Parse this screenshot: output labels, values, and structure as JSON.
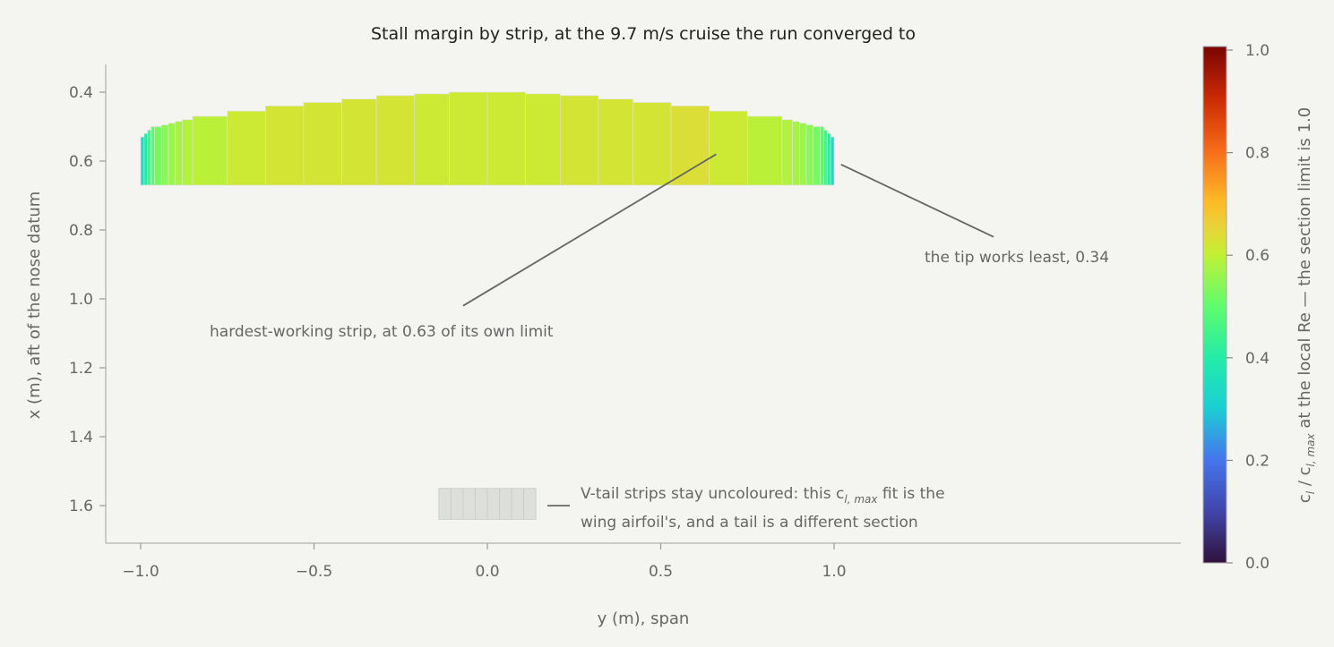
{
  "chart_data": {
    "type": "heatmap",
    "title": "Stall margin by strip, at the 9.7 m/s cruise the run converged to",
    "xlabel": "y (m), span",
    "ylabel": "x (m), aft of the nose datum",
    "xlim": [
      -1.25,
      2.0
    ],
    "ylim": [
      1.74,
      0.33
    ],
    "y_inverted": true,
    "grid": false,
    "x_ticks": [
      -1.0,
      -0.5,
      0.0,
      0.5,
      1.0
    ],
    "x_tick_labels": [
      "−1.0",
      "−0.5",
      "0.0",
      "0.5",
      "1.0"
    ],
    "y_ticks": [
      0.4,
      0.6,
      0.8,
      1.0,
      1.2,
      1.4,
      1.6
    ],
    "y_tick_labels": [
      "0.4",
      "0.6",
      "0.8",
      "1.0",
      "1.2",
      "1.4",
      "1.6"
    ],
    "colorbar": {
      "label_prefix": "c",
      "label_prefix_sub": "l",
      "label_mid": " / c",
      "label_mid_sub": "l, max",
      "label_suffix": " at the local Re — the section limit is 1.0",
      "range": [
        0.0,
        1.0
      ],
      "ticks": [
        0.0,
        0.2,
        0.4,
        0.6,
        0.8,
        1.0
      ],
      "tick_labels": [
        "0.0",
        "0.2",
        "0.4",
        "0.6",
        "0.8",
        "1.0"
      ],
      "colormap": "turbo"
    },
    "wing": {
      "trailing_edge_x": 0.67,
      "strips": [
        {
          "y0": -1.0,
          "y1": -0.99,
          "le": 0.53,
          "v": 0.34
        },
        {
          "y0": -0.99,
          "y1": -0.98,
          "le": 0.52,
          "v": 0.4
        },
        {
          "y0": -0.98,
          "y1": -0.97,
          "le": 0.51,
          "v": 0.45
        },
        {
          "y0": -0.97,
          "y1": -0.96,
          "le": 0.5,
          "v": 0.49
        },
        {
          "y0": -0.96,
          "y1": -0.94,
          "le": 0.5,
          "v": 0.52
        },
        {
          "y0": -0.94,
          "y1": -0.92,
          "le": 0.495,
          "v": 0.54
        },
        {
          "y0": -0.92,
          "y1": -0.9,
          "le": 0.49,
          "v": 0.56
        },
        {
          "y0": -0.9,
          "y1": -0.88,
          "le": 0.485,
          "v": 0.57
        },
        {
          "y0": -0.88,
          "y1": -0.85,
          "le": 0.48,
          "v": 0.58
        },
        {
          "y0": -0.85,
          "y1": -0.75,
          "le": 0.47,
          "v": 0.59
        },
        {
          "y0": -0.75,
          "y1": -0.64,
          "le": 0.455,
          "v": 0.61
        },
        {
          "y0": -0.64,
          "y1": -0.53,
          "le": 0.44,
          "v": 0.62
        },
        {
          "y0": -0.53,
          "y1": -0.42,
          "le": 0.43,
          "v": 0.62
        },
        {
          "y0": -0.42,
          "y1": -0.32,
          "le": 0.42,
          "v": 0.62
        },
        {
          "y0": -0.32,
          "y1": -0.21,
          "le": 0.41,
          "v": 0.62
        },
        {
          "y0": -0.21,
          "y1": -0.11,
          "le": 0.405,
          "v": 0.61
        },
        {
          "y0": -0.11,
          "y1": 0.0,
          "le": 0.4,
          "v": 0.61
        },
        {
          "y0": 0.0,
          "y1": 0.11,
          "le": 0.4,
          "v": 0.61
        },
        {
          "y0": 0.11,
          "y1": 0.21,
          "le": 0.405,
          "v": 0.61
        },
        {
          "y0": 0.21,
          "y1": 0.32,
          "le": 0.41,
          "v": 0.62
        },
        {
          "y0": 0.32,
          "y1": 0.42,
          "le": 0.42,
          "v": 0.62
        },
        {
          "y0": 0.42,
          "y1": 0.53,
          "le": 0.43,
          "v": 0.62
        },
        {
          "y0": 0.53,
          "y1": 0.64,
          "le": 0.44,
          "v": 0.63
        },
        {
          "y0": 0.64,
          "y1": 0.75,
          "le": 0.455,
          "v": 0.61
        },
        {
          "y0": 0.75,
          "y1": 0.85,
          "le": 0.47,
          "v": 0.59
        },
        {
          "y0": 0.85,
          "y1": 0.88,
          "le": 0.48,
          "v": 0.58
        },
        {
          "y0": 0.88,
          "y1": 0.9,
          "le": 0.485,
          "v": 0.57
        },
        {
          "y0": 0.9,
          "y1": 0.92,
          "le": 0.49,
          "v": 0.56
        },
        {
          "y0": 0.92,
          "y1": 0.94,
          "le": 0.495,
          "v": 0.54
        },
        {
          "y0": 0.94,
          "y1": 0.96,
          "le": 0.5,
          "v": 0.52
        },
        {
          "y0": 0.96,
          "y1": 0.97,
          "le": 0.5,
          "v": 0.49
        },
        {
          "y0": 0.97,
          "y1": 0.98,
          "le": 0.51,
          "v": 0.45
        },
        {
          "y0": 0.98,
          "y1": 0.99,
          "le": 0.52,
          "v": 0.4
        },
        {
          "y0": 0.99,
          "y1": 1.0,
          "le": 0.53,
          "v": 0.34
        }
      ]
    },
    "vtail": {
      "y_start": -0.14,
      "y_end": 0.14,
      "x_start": 1.55,
      "x_end": 1.64,
      "strips": 8,
      "color": "#dcdfda",
      "edge_color": "#c8cbc6"
    },
    "annotations": [
      {
        "text": "hardest-working strip, at 0.63 of its own limit",
        "point": [
          0.66,
          0.58
        ],
        "text_at": [
          -0.8,
          1.13
        ],
        "line_end": [
          -0.07,
          1.02
        ]
      },
      {
        "text": "the tip works least, 0.34",
        "point": [
          1.02,
          0.61
        ],
        "text_at": [
          1.26,
          0.93
        ],
        "line_end": [
          1.46,
          0.82
        ]
      }
    ],
    "vtail_note": {
      "line1_prefix": "V-tail strips stay uncoloured: this c",
      "line1_sub": "l, max",
      "line1_suffix": " fit is the",
      "line2": "wing airfoil's, and a tail is a different section",
      "dash": "—"
    }
  }
}
